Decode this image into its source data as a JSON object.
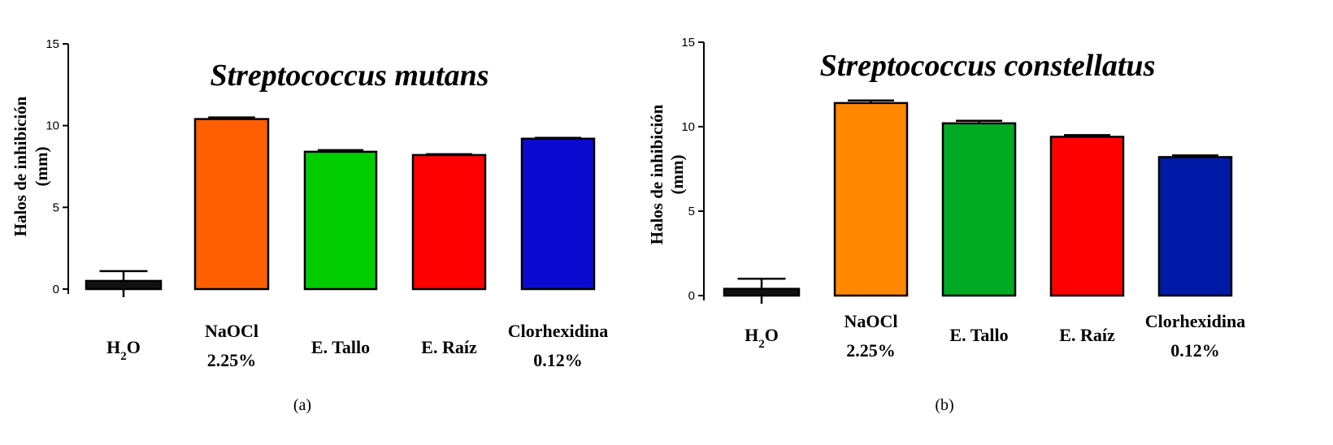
{
  "chart_data": [
    {
      "type": "bar",
      "panel_label": "(a)",
      "title": "Streptococcus mutans",
      "ylabel_line1": "Halos de inhibición",
      "ylabel_line2": "(mm)",
      "xlabel": "",
      "ylim": [
        0,
        15
      ],
      "yticks": [
        "0",
        "5",
        "10",
        "15"
      ],
      "categories": [
        {
          "base": "H",
          "sub": "2",
          "rest": "O",
          "line2": ""
        },
        {
          "base": "NaOCl",
          "sub": "",
          "rest": "",
          "line2": "2.25%"
        },
        {
          "base": "E. Tallo",
          "sub": "",
          "rest": "",
          "line2": ""
        },
        {
          "base": "E. Raíz",
          "sub": "",
          "rest": "",
          "line2": ""
        },
        {
          "base": "Clorhexidina",
          "sub": "",
          "rest": "",
          "line2": "0.12%"
        }
      ],
      "values": [
        0.5,
        10.4,
        8.4,
        8.2,
        9.2
      ],
      "errors": [
        0.6,
        0.1,
        0.1,
        0.05,
        0.05
      ],
      "colors": [
        "#111111",
        "#ff5f00",
        "#00cc00",
        "#ff0000",
        "#0a0ad0"
      ]
    },
    {
      "type": "bar",
      "panel_label": "(b)",
      "title": "Streptococcus constellatus",
      "ylabel_line1": "Halos de inhibición",
      "ylabel_line2": "(mm)",
      "xlabel": "",
      "ylim": [
        0,
        15
      ],
      "yticks": [
        "0",
        "5",
        "10",
        "15"
      ],
      "categories": [
        {
          "base": "H",
          "sub": "2",
          "rest": "O",
          "line2": ""
        },
        {
          "base": "NaOCl",
          "sub": "",
          "rest": "",
          "line2": "2.25%"
        },
        {
          "base": "E. Tallo",
          "sub": "",
          "rest": "",
          "line2": ""
        },
        {
          "base": "E. Raíz",
          "sub": "",
          "rest": "",
          "line2": ""
        },
        {
          "base": "Clorhexidina",
          "sub": "",
          "rest": "",
          "line2": "0.12%"
        }
      ],
      "values": [
        0.4,
        11.4,
        10.2,
        9.4,
        8.2
      ],
      "errors": [
        0.6,
        0.15,
        0.15,
        0.1,
        0.1
      ],
      "colors": [
        "#111111",
        "#ff8800",
        "#00aa22",
        "#ff0000",
        "#001aa8"
      ]
    }
  ]
}
